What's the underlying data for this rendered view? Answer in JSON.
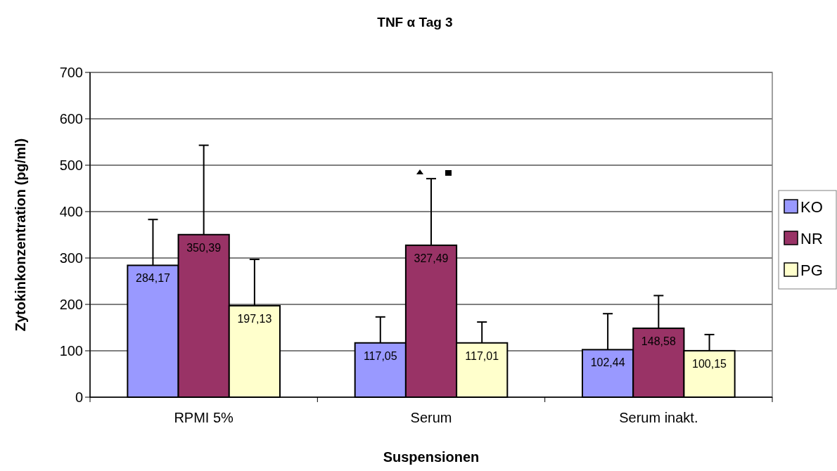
{
  "chart_data": {
    "type": "bar",
    "title": "TNF α Tag 3",
    "xlabel": "Suspensionen",
    "ylabel": "Zytokinkonzentration (pg/ml)",
    "categories": [
      "RPMI 5%",
      "Serum",
      "Serum inakt."
    ],
    "series": [
      {
        "name": "KO",
        "color": "#9999ff",
        "values": [
          284.17,
          117.05,
          102.44
        ],
        "value_labels": [
          "284,17",
          "117,05",
          "102,44"
        ],
        "errors": [
          [
            284.17,
            383
          ],
          [
            117.05,
            173
          ],
          [
            102.44,
            180
          ]
        ]
      },
      {
        "name": "NR",
        "color": "#993366",
        "values": [
          350.39,
          327.49,
          148.58
        ],
        "value_labels": [
          "350,39",
          "327,49",
          "148,58"
        ],
        "errors": [
          [
            350.39,
            543
          ],
          [
            327.49,
            471
          ],
          [
            148.58,
            219
          ]
        ]
      },
      {
        "name": "PG",
        "color": "#ffffcc",
        "values": [
          197.13,
          117.01,
          100.15
        ],
        "value_labels": [
          "197,13",
          "117,01",
          "100,15"
        ],
        "errors": [
          [
            197.13,
            297
          ],
          [
            117.01,
            162
          ],
          [
            100.15,
            135
          ]
        ]
      }
    ],
    "ylim": [
      0,
      700
    ],
    "yticks": [
      0,
      100,
      200,
      300,
      400,
      500,
      600,
      700
    ],
    "grid": "y",
    "legend": "right"
  }
}
